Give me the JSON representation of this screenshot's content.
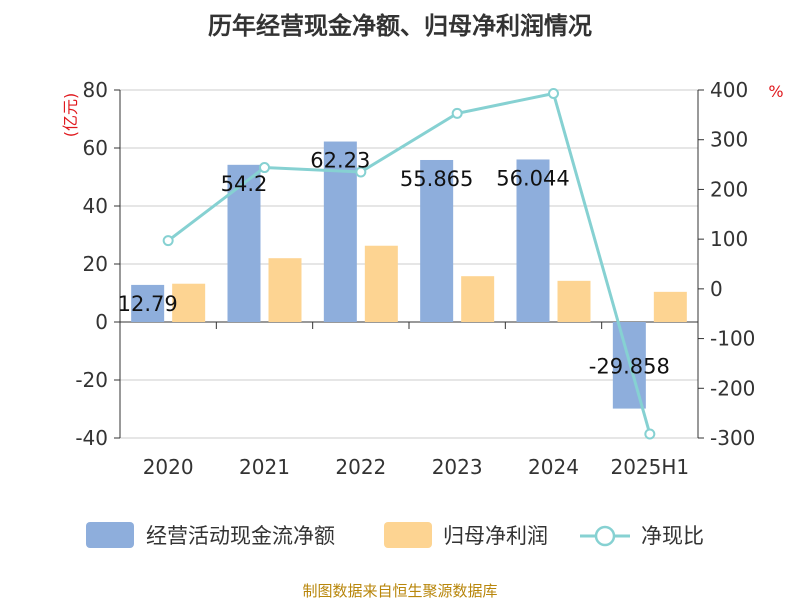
{
  "title": "历年经营现金净额、归母净利润情况",
  "source": "制图数据来自恒生聚源数据库",
  "colors": {
    "cashflow": "#8eaedc",
    "profit": "#fdd492",
    "ratio": "#86d1d2",
    "unit_label": "#e0191e",
    "source_text": "#b8860b"
  },
  "chart_data": {
    "type": "bar",
    "categories": [
      "2020",
      "2021",
      "2022",
      "2023",
      "2024",
      "2025H1"
    ],
    "left_axis": {
      "unit": "(亿元)",
      "ylim": [
        -40,
        80
      ],
      "ticks": [
        "80",
        "60",
        "40",
        "20",
        "0",
        "-20",
        "-40"
      ]
    },
    "right_axis": {
      "unit": "%",
      "ylim": [
        -300,
        400
      ],
      "ticks": [
        "400",
        "300",
        "200",
        "100",
        "0",
        "-100",
        "-200",
        "-300"
      ]
    },
    "series": [
      {
        "name": "经营活动现金流净额",
        "type": "bar",
        "axis": "left",
        "values": [
          12.79,
          54.2,
          62.23,
          55.865,
          56.044,
          -29.858
        ],
        "labels": [
          "12.79",
          "54.2",
          "62.23",
          "55.865",
          "56.044",
          "-29.858"
        ]
      },
      {
        "name": "归母净利润",
        "type": "bar",
        "axis": "left",
        "values": [
          13.2,
          22.0,
          26.3,
          15.8,
          14.2,
          10.4
        ]
      },
      {
        "name": "净现比",
        "type": "line",
        "axis": "right",
        "values": [
          97,
          244,
          235,
          353,
          393,
          -292
        ]
      }
    ],
    "grid": true,
    "legend_position": "bottom"
  }
}
